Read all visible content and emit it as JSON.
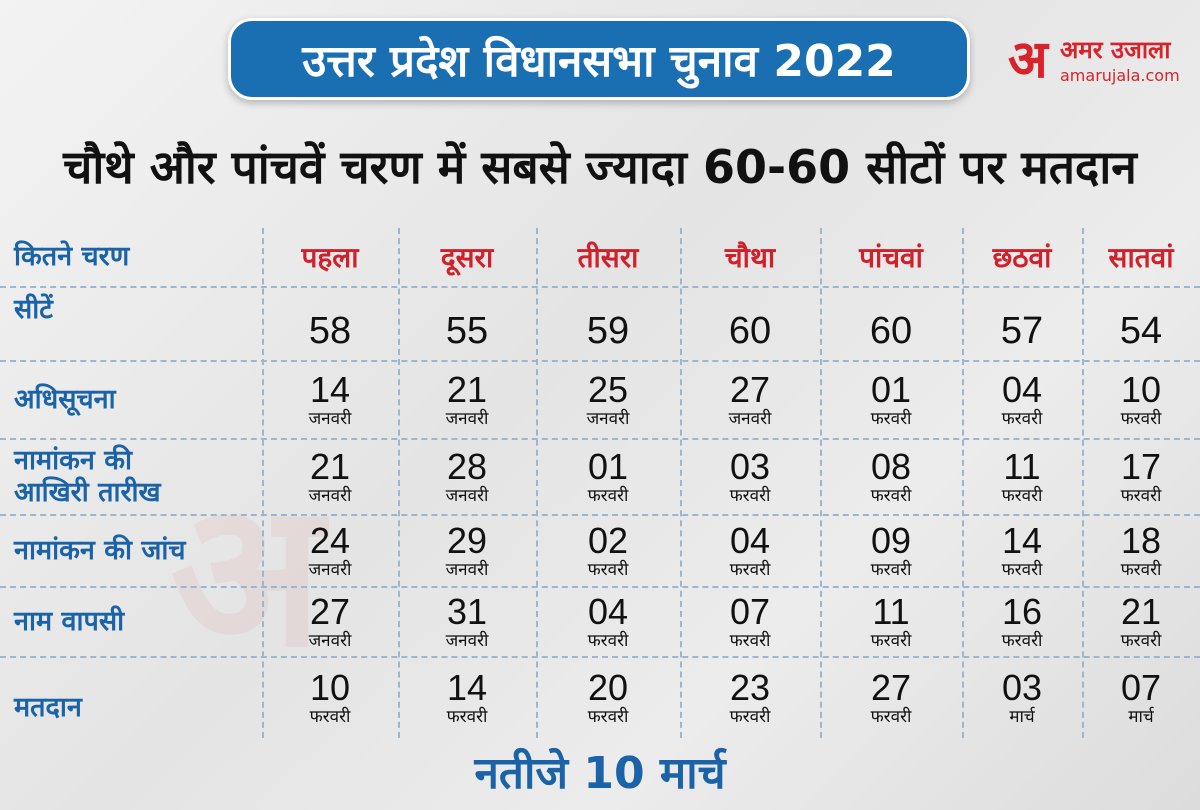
{
  "header": {
    "title": "उत्तर प्रदेश विधानसभा चुनाव  2022"
  },
  "logo": {
    "mark": "अ",
    "name": "अमर उजाला",
    "url": "amarujala.com",
    "color": "#d8232a"
  },
  "headline": "चौथे और पांचवें चरण में सबसे ज्यादा 60-60 सीटों पर मतदान",
  "table": {
    "corner_label": "कितने  चरण",
    "phases": [
      "पहला",
      "दूसरा",
      "तीसरा",
      "चौथा",
      "पांचवां",
      "छठवां",
      "सातवां"
    ],
    "seats_label": "सीटें",
    "seats": [
      "58",
      "55",
      "59",
      "60",
      "60",
      "57",
      "54"
    ],
    "rows": [
      {
        "label": "अधिसूचना",
        "cells": [
          {
            "day": "14",
            "month": "जनवरी"
          },
          {
            "day": "21",
            "month": "जनवरी"
          },
          {
            "day": "25",
            "month": "जनवरी"
          },
          {
            "day": "27",
            "month": "जनवरी"
          },
          {
            "day": "01",
            "month": "फरवरी"
          },
          {
            "day": "04",
            "month": "फरवरी"
          },
          {
            "day": "10",
            "month": "फरवरी"
          }
        ]
      },
      {
        "label": "नामांकन की आखिरी तारीख",
        "label_line1": "नामांकन की",
        "label_line2": "आखिरी तारीख",
        "cells": [
          {
            "day": "21",
            "month": "जनवरी"
          },
          {
            "day": "28",
            "month": "जनवरी"
          },
          {
            "day": "01",
            "month": "फरवरी"
          },
          {
            "day": "03",
            "month": "फरवरी"
          },
          {
            "day": "08",
            "month": "फरवरी"
          },
          {
            "day": "11",
            "month": "फरवरी"
          },
          {
            "day": "17",
            "month": "फरवरी"
          }
        ]
      },
      {
        "label": "नामांकन की जांच",
        "cells": [
          {
            "day": "24",
            "month": "जनवरी"
          },
          {
            "day": "29",
            "month": "जनवरी"
          },
          {
            "day": "02",
            "month": "फरवरी"
          },
          {
            "day": "04",
            "month": "फरवरी"
          },
          {
            "day": "09",
            "month": "फरवरी"
          },
          {
            "day": "14",
            "month": "फरवरी"
          },
          {
            "day": "18",
            "month": "फरवरी"
          }
        ]
      },
      {
        "label": "नाम वापसी",
        "cells": [
          {
            "day": "27",
            "month": "जनवरी"
          },
          {
            "day": "31",
            "month": "जनवरी"
          },
          {
            "day": "04",
            "month": "फरवरी"
          },
          {
            "day": "07",
            "month": "फरवरी"
          },
          {
            "day": "11",
            "month": "फरवरी"
          },
          {
            "day": "16",
            "month": "फरवरी"
          },
          {
            "day": "21",
            "month": "फरवरी"
          }
        ]
      },
      {
        "label": "मतदान",
        "cells": [
          {
            "day": "10",
            "month": "फरवरी"
          },
          {
            "day": "14",
            "month": "फरवरी"
          },
          {
            "day": "20",
            "month": "फरवरी"
          },
          {
            "day": "23",
            "month": "फरवरी"
          },
          {
            "day": "27",
            "month": "फरवरी"
          },
          {
            "day": "03",
            "month": "मार्च"
          },
          {
            "day": "07",
            "month": "मार्च"
          }
        ]
      }
    ]
  },
  "footer": "नतीजे 10 मार्च",
  "colors": {
    "header_blue": "#1a6fb3",
    "label_blue": "#1a63a8",
    "phase_red": "#d0212b",
    "divider": "#9cb6cf"
  }
}
